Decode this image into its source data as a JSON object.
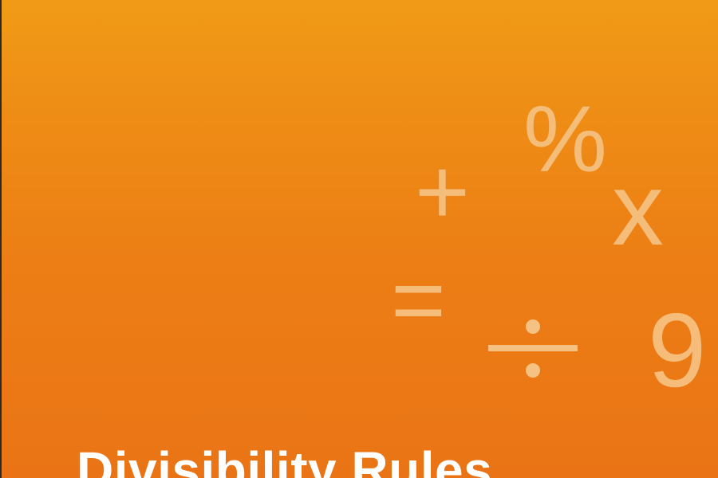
{
  "background": {
    "gradient_top": "#f09b17",
    "gradient_bottom": "#ea7415",
    "symbol_color": "#f6c283"
  },
  "symbols": {
    "percent": "%",
    "times": "x",
    "plus": "+",
    "equals": "=",
    "divide": "divide-icon",
    "nine": "9"
  },
  "title": "Divisibility Rules"
}
